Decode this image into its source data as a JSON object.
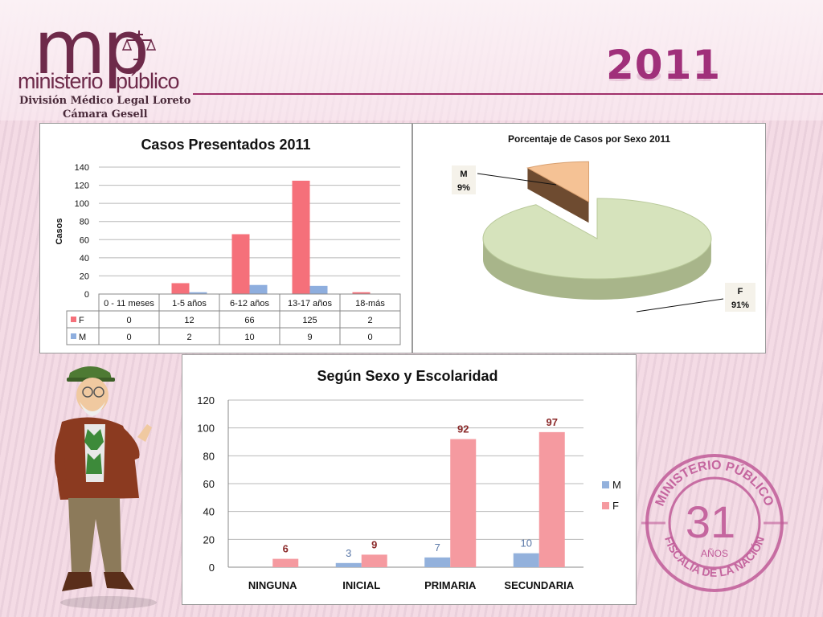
{
  "header": {
    "logo_mp": "mp",
    "logo_word1": "ministerio",
    "logo_word2": "público",
    "subtitle1": "División Médico Legal Loreto",
    "subtitle2": "Cámara Gesell",
    "year": "2011"
  },
  "stamp": {
    "top_text": "MINISTERIO PÚBLICO",
    "number": "31",
    "anos": "AÑOS",
    "bottom_text": "FISCALÍA DE LA NACIÓN"
  },
  "colors": {
    "F": "#f5707a",
    "M": "#8eaede",
    "F3": "#f59aa0",
    "M3": "#93b1dc",
    "pie_F": "#d6e3bc",
    "pie_M": "#f5c295",
    "brand": "#a0307a"
  },
  "chart_data": [
    {
      "type": "bar",
      "title": "Casos Presentados 2011",
      "ylabel": "Casos",
      "ylim": [
        0,
        140
      ],
      "yticks": [
        "0",
        "20",
        "40",
        "60",
        "80",
        "100",
        "120",
        "140"
      ],
      "categories": [
        "0 - 11 meses",
        "1-5 años",
        "6-12 años",
        "13-17 años",
        "18-más"
      ],
      "series": [
        {
          "name": "F",
          "values": [
            0,
            12,
            66,
            125,
            2
          ],
          "labels": [
            "0",
            "12",
            "66",
            "125",
            "2"
          ]
        },
        {
          "name": "M",
          "values": [
            0,
            2,
            10,
            9,
            0
          ],
          "labels": [
            "0",
            "2",
            "10",
            "9",
            "0"
          ]
        }
      ],
      "data_table": true,
      "grid": true
    },
    {
      "type": "pie",
      "title": "Porcentaje de Casos por Sexo 2011",
      "slices": [
        {
          "name": "F",
          "value": 91,
          "label": "91%"
        },
        {
          "name": "M",
          "value": 9,
          "label": "9%"
        }
      ]
    },
    {
      "type": "bar",
      "title": "Según Sexo y Escolaridad",
      "ylim": [
        0,
        120
      ],
      "yticks": [
        "0",
        "20",
        "40",
        "60",
        "80",
        "100",
        "120"
      ],
      "categories": [
        "NINGUNA",
        "INICIAL",
        "PRIMARIA",
        "SECUNDARIA"
      ],
      "series": [
        {
          "name": "M",
          "values": [
            0,
            3,
            7,
            10
          ],
          "labels": [
            "",
            "3",
            "7",
            "10"
          ]
        },
        {
          "name": "F",
          "values": [
            6,
            9,
            92,
            97
          ],
          "labels": [
            "6",
            "9",
            "92",
            "97"
          ]
        }
      ],
      "legend": "right",
      "grid": true
    }
  ]
}
